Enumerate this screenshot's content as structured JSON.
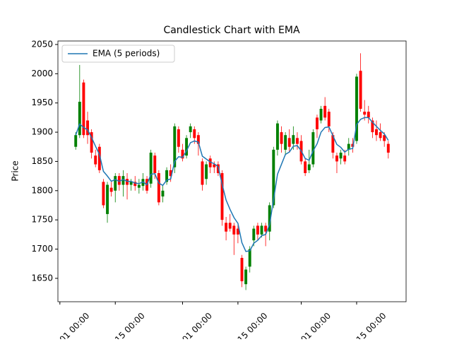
{
  "chart_data": {
    "type": "candlestick",
    "title": "Candlestick Chart with EMA",
    "ylabel": "Price",
    "x": [
      4,
      5,
      6,
      7,
      8,
      9,
      10,
      11,
      12,
      13,
      14,
      15,
      16,
      17,
      18,
      19,
      20,
      21,
      22,
      23,
      24,
      25,
      26,
      27,
      28,
      29,
      30,
      31,
      32,
      33,
      34,
      35,
      36,
      37,
      38,
      39,
      40,
      41,
      42,
      43,
      44,
      45,
      46,
      47,
      48,
      49,
      50,
      51,
      52,
      53,
      54,
      55,
      56,
      57,
      58,
      59,
      60,
      61,
      62,
      63,
      64,
      65,
      66,
      67,
      68,
      69,
      70,
      71,
      72,
      73,
      74,
      75,
      76,
      77,
      78,
      79,
      80,
      81,
      82,
      83
    ],
    "open": [
      1875,
      1895,
      1985,
      1920,
      1900,
      1860,
      1875,
      1815,
      1760,
      1805,
      1800,
      1825,
      1810,
      1820,
      1810,
      1815,
      1805,
      1808,
      1820,
      1812,
      1860,
      1830,
      1790,
      1815,
      1835,
      1840,
      1905,
      1870,
      1860,
      1900,
      1905,
      1895,
      1850,
      1820,
      1855,
      1845,
      1845,
      1830,
      1745,
      1745,
      1740,
      1735,
      1685,
      1640,
      1670,
      1715,
      1740,
      1725,
      1740,
      1730,
      1775,
      1870,
      1900,
      1870,
      1890,
      1880,
      1890,
      1885,
      1850,
      1835,
      1845,
      1925,
      1920,
      1945,
      1935,
      1895,
      1860,
      1855,
      1860,
      1870,
      1880,
      1885,
      2005,
      1935,
      1935,
      1920,
      1905,
      1900,
      1895,
      1880
    ],
    "high": [
      1900,
      2015,
      1990,
      1935,
      1905,
      1870,
      1880,
      1820,
      1815,
      1815,
      1830,
      1830,
      1835,
      1830,
      1820,
      1825,
      1820,
      1830,
      1825,
      1870,
      1865,
      1835,
      1810,
      1840,
      1845,
      1915,
      1910,
      1880,
      1895,
      1915,
      1910,
      1900,
      1855,
      1850,
      1860,
      1850,
      1850,
      1835,
      1755,
      1760,
      1745,
      1745,
      1690,
      1670,
      1705,
      1740,
      1745,
      1745,
      1745,
      1780,
      1875,
      1920,
      1910,
      1900,
      1905,
      1910,
      1900,
      1895,
      1855,
      1870,
      1905,
      1930,
      1945,
      1960,
      1940,
      1900,
      1865,
      1870,
      1870,
      1890,
      1890,
      2000,
      2035,
      1955,
      1945,
      1925,
      1920,
      1915,
      1900,
      1885
    ],
    "low": [
      1870,
      1890,
      1890,
      1880,
      1855,
      1840,
      1830,
      1770,
      1745,
      1790,
      1780,
      1800,
      1790,
      1785,
      1800,
      1800,
      1795,
      1800,
      1795,
      1805,
      1820,
      1775,
      1780,
      1810,
      1815,
      1830,
      1865,
      1850,
      1855,
      1890,
      1880,
      1860,
      1800,
      1810,
      1830,
      1830,
      1825,
      1740,
      1715,
      1730,
      1690,
      1710,
      1635,
      1630,
      1660,
      1705,
      1715,
      1720,
      1705,
      1715,
      1770,
      1860,
      1865,
      1860,
      1865,
      1870,
      1870,
      1845,
      1825,
      1830,
      1840,
      1890,
      1915,
      1920,
      1900,
      1855,
      1830,
      1845,
      1845,
      1860,
      1865,
      1880,
      1935,
      1920,
      1915,
      1890,
      1885,
      1885,
      1875,
      1855
    ],
    "close": [
      1895,
      1952,
      1895,
      1895,
      1865,
      1845,
      1835,
      1775,
      1810,
      1798,
      1825,
      1810,
      1825,
      1810,
      1815,
      1808,
      1810,
      1820,
      1800,
      1865,
      1830,
      1780,
      1800,
      1835,
      1825,
      1910,
      1875,
      1855,
      1890,
      1910,
      1890,
      1880,
      1810,
      1845,
      1840,
      1840,
      1830,
      1750,
      1730,
      1735,
      1725,
      1725,
      1645,
      1665,
      1700,
      1735,
      1725,
      1740,
      1730,
      1775,
      1870,
      1915,
      1880,
      1895,
      1875,
      1895,
      1880,
      1850,
      1830,
      1845,
      1900,
      1905,
      1940,
      1925,
      1910,
      1865,
      1850,
      1865,
      1850,
      1880,
      1875,
      1995,
      1940,
      1930,
      1925,
      1900,
      1895,
      1890,
      1885,
      1865
    ],
    "up_color": "green",
    "down_color": "red",
    "series": [
      {
        "name": "EMA (5 periods)",
        "color": "#1f77b4",
        "values": [
          1895,
          1914,
          1908,
          1904,
          1891,
          1876,
          1862,
          1833,
          1825,
          1816,
          1819,
          1816,
          1819,
          1816,
          1816,
          1813,
          1812,
          1815,
          1810,
          1828,
          1829,
          1813,
          1809,
          1818,
          1820,
          1850,
          1858,
          1857,
          1868,
          1882,
          1885,
          1883,
          1859,
          1854,
          1849,
          1846,
          1841,
          1811,
          1784,
          1768,
          1754,
          1744,
          1711,
          1696,
          1697,
          1710,
          1715,
          1723,
          1725,
          1742,
          1785,
          1828,
          1845,
          1862,
          1866,
          1876,
          1877,
          1868,
          1855,
          1852,
          1868,
          1880,
          1900,
          1908,
          1909,
          1894,
          1879,
          1874,
          1866,
          1871,
          1872,
          1913,
          1922,
          1925,
          1925,
          1917,
          1910,
          1903,
          1897,
          1886
        ]
      }
    ],
    "xlim": [
      -0.5,
      87.5
    ],
    "xticks": [
      {
        "value": 0,
        "label": "01 00:00"
      },
      {
        "value": 14,
        "label": "15 00:00"
      },
      {
        "value": 31,
        "label": "01 00:00"
      },
      {
        "value": 45,
        "label": "15 00:00"
      },
      {
        "value": 61,
        "label": "01 00:00"
      },
      {
        "value": 75,
        "label": "15 00:00"
      }
    ],
    "ylim": [
      1610,
      2056
    ],
    "yticks": [
      1650,
      1700,
      1750,
      1800,
      1850,
      1900,
      1950,
      2000,
      2050
    ],
    "legend": "upper left"
  }
}
